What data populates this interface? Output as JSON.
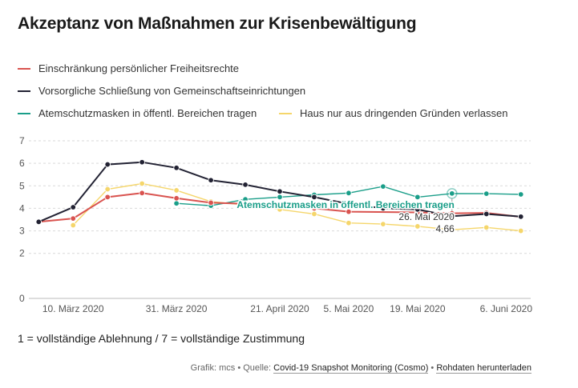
{
  "title": "Akzeptanz von Maßnahmen zur Krisenbewältigung",
  "footnote": "1 = vollständige Ablehnung / 7 = vollständige Zustimmung",
  "source": {
    "prefix": "Grafik: mcs • Quelle:",
    "link1": "Covid-19 Snapshot Monitoring (Cosmo)",
    "sep": "•",
    "link2": "Rohdaten herunterladen"
  },
  "annotation": {
    "label": "Atemschutzmasken in öffentl. Bereichen tragen",
    "date": "26. Mai 2020",
    "value": "4,66"
  },
  "chart_data": {
    "type": "line",
    "x": [
      "2020-03-03",
      "2020-03-10",
      "2020-03-17",
      "2020-03-24",
      "2020-03-31",
      "2020-04-07",
      "2020-04-14",
      "2020-04-21",
      "2020-04-28",
      "2020-05-05",
      "2020-05-12",
      "2020-05-19",
      "2020-05-26",
      "2020-06-02",
      "2020-06-09"
    ],
    "xticks": [
      {
        "date": "2020-03-10",
        "label": "10. März 2020"
      },
      {
        "date": "2020-03-31",
        "label": "31. März 2020"
      },
      {
        "date": "2020-04-21",
        "label": "21. April 2020"
      },
      {
        "date": "2020-05-05",
        "label": "5. Mai 2020"
      },
      {
        "date": "2020-05-19",
        "label": "19. Mai 2020"
      },
      {
        "date": "2020-06-06",
        "label": "6. Juni 2020"
      }
    ],
    "yticks": [
      0,
      2,
      3,
      4,
      5,
      6,
      7
    ],
    "ylim": [
      0,
      7
    ],
    "grid": true,
    "legend_position": "top",
    "series": [
      {
        "name": "Einschränkung persönlicher Freiheitsrechte",
        "color": "#d9534f",
        "values": [
          3.4,
          3.55,
          4.5,
          4.68,
          4.45,
          4.25,
          4.2,
          4.1,
          4.0,
          3.85,
          null,
          3.82,
          3.78,
          3.8,
          3.62
        ]
      },
      {
        "name": "Vorsorgliche Schließung von Gemeinschaftseinrichtungen",
        "color": "#222233",
        "values": [
          3.4,
          4.05,
          5.95,
          6.05,
          5.8,
          5.25,
          5.05,
          4.75,
          4.5,
          4.2,
          4.0,
          3.95,
          3.65,
          3.75,
          3.63
        ]
      },
      {
        "name": "Atemschutzmasken in öffentl. Bereichen tragen",
        "color": "#1a9e89",
        "values": [
          null,
          null,
          null,
          null,
          4.22,
          4.12,
          4.4,
          4.5,
          4.6,
          4.68,
          4.97,
          4.5,
          4.66,
          4.65,
          4.62
        ]
      },
      {
        "name": "Haus nur aus dringenden Gründen verlassen",
        "color": "#f5d66b",
        "values": [
          null,
          3.25,
          4.85,
          5.1,
          4.8,
          4.3,
          4.15,
          3.95,
          3.75,
          3.35,
          3.3,
          3.2,
          3.05,
          3.15,
          3.0
        ]
      }
    ]
  }
}
